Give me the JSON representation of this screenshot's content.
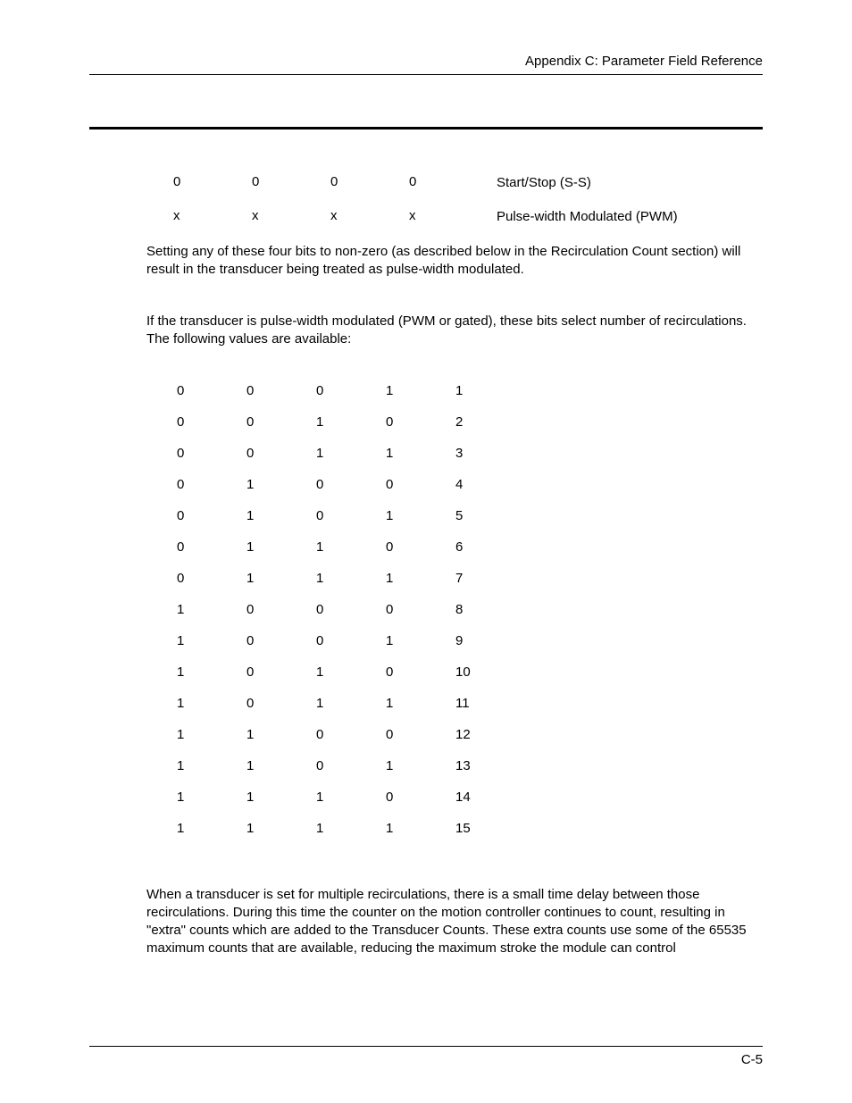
{
  "header": {
    "title": "Appendix C:  Parameter Field Reference"
  },
  "bit_table": {
    "rows": [
      {
        "b3": "0",
        "b2": "0",
        "b1": "0",
        "b0": "0",
        "desc": "Start/Stop (S-S)"
      },
      {
        "b3": "x",
        "b2": "x",
        "b1": "x",
        "b0": "x",
        "desc": "Pulse-width Modulated (PWM)"
      }
    ]
  },
  "para1": "Setting any of these four bits to non-zero (as described below in the Recirculation Count section) will result in the transducer being treated as pulse-width modulated.",
  "para2": "If the transducer is pulse-width modulated (PWM or gated), these bits select number of recirculations. The following values are available:",
  "recirc_table": {
    "rows": [
      {
        "b3": "0",
        "b2": "0",
        "b1": "0",
        "b0": "1",
        "val": "1"
      },
      {
        "b3": "0",
        "b2": "0",
        "b1": "1",
        "b0": "0",
        "val": "2"
      },
      {
        "b3": "0",
        "b2": "0",
        "b1": "1",
        "b0": "1",
        "val": "3"
      },
      {
        "b3": "0",
        "b2": "1",
        "b1": "0",
        "b0": "0",
        "val": "4"
      },
      {
        "b3": "0",
        "b2": "1",
        "b1": "0",
        "b0": "1",
        "val": "5"
      },
      {
        "b3": "0",
        "b2": "1",
        "b1": "1",
        "b0": "0",
        "val": "6"
      },
      {
        "b3": "0",
        "b2": "1",
        "b1": "1",
        "b0": "1",
        "val": "7"
      },
      {
        "b3": "1",
        "b2": "0",
        "b1": "0",
        "b0": "0",
        "val": "8"
      },
      {
        "b3": "1",
        "b2": "0",
        "b1": "0",
        "b0": "1",
        "val": "9"
      },
      {
        "b3": "1",
        "b2": "0",
        "b1": "1",
        "b0": "0",
        "val": "10"
      },
      {
        "b3": "1",
        "b2": "0",
        "b1": "1",
        "b0": "1",
        "val": "11"
      },
      {
        "b3": "1",
        "b2": "1",
        "b1": "0",
        "b0": "0",
        "val": "12"
      },
      {
        "b3": "1",
        "b2": "1",
        "b1": "0",
        "b0": "1",
        "val": "13"
      },
      {
        "b3": "1",
        "b2": "1",
        "b1": "1",
        "b0": "0",
        "val": "14"
      },
      {
        "b3": "1",
        "b2": "1",
        "b1": "1",
        "b0": "1",
        "val": "15"
      }
    ]
  },
  "para3": "When a transducer is set for multiple recirculations, there is a small time delay between those recirculations. During this time the counter on the motion controller continues to count, resulting in \"extra\" counts which are added to the Transducer Counts. These extra counts use some of the 65535 maximum counts that are available, reducing the maximum stroke the module can control",
  "footer": {
    "page": "C-5"
  }
}
